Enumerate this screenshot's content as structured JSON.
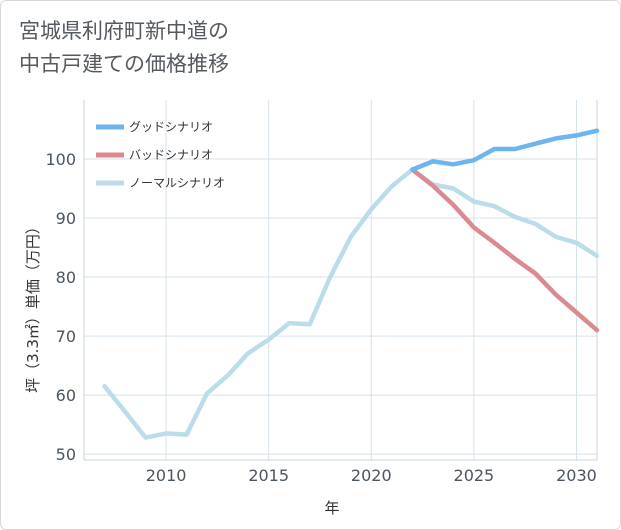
{
  "title": {
    "line1": "宮城県利府町新中道の",
    "line2": "中古戸建ての価格推移"
  },
  "chart_data": {
    "type": "line",
    "xlabel": "年",
    "ylabel": "坪（3.3㎡）単価（万円）",
    "xlim": [
      2006,
      2031
    ],
    "ylim": [
      49,
      110
    ],
    "x_ticks": [
      2010,
      2015,
      2020,
      2025,
      2030
    ],
    "y_ticks": [
      50,
      60,
      70,
      80,
      90,
      100
    ],
    "grid": true,
    "legend_position": "top-left",
    "series": [
      {
        "name": "グッドシナリオ",
        "color": "#6cb5ee",
        "x": [
          2022,
          2023,
          2024,
          2025,
          2026,
          2027,
          2028,
          2029,
          2030,
          2031
        ],
        "values": [
          98.2,
          99.6,
          99.1,
          99.8,
          101.7,
          101.7,
          102.6,
          103.5,
          104.0,
          104.8
        ]
      },
      {
        "name": "バッドシナリオ",
        "color": "#db8a90",
        "x": [
          2022,
          2023,
          2024,
          2025,
          2026,
          2027,
          2028,
          2029,
          2030,
          2031
        ],
        "values": [
          98.2,
          95.5,
          92.2,
          88.4,
          85.8,
          83.1,
          80.6,
          77.0,
          74.0,
          71.0
        ]
      },
      {
        "name": "ノーマルシナリオ",
        "color": "#bcdcea",
        "x": [
          2007,
          2008,
          2009,
          2010,
          2011,
          2012,
          2013,
          2014,
          2015,
          2016,
          2017,
          2018,
          2019,
          2020,
          2021,
          2022,
          2023,
          2024,
          2025,
          2026,
          2027,
          2028,
          2029,
          2030,
          2031
        ],
        "values": [
          61.5,
          57.2,
          52.8,
          53.5,
          53.3,
          60.3,
          63.3,
          67.1,
          69.4,
          72.2,
          72.0,
          80.0,
          86.8,
          91.5,
          95.4,
          98.2,
          95.7,
          95.0,
          92.8,
          92.0,
          90.2,
          89.0,
          86.8,
          85.8,
          83.6
        ]
      }
    ]
  }
}
